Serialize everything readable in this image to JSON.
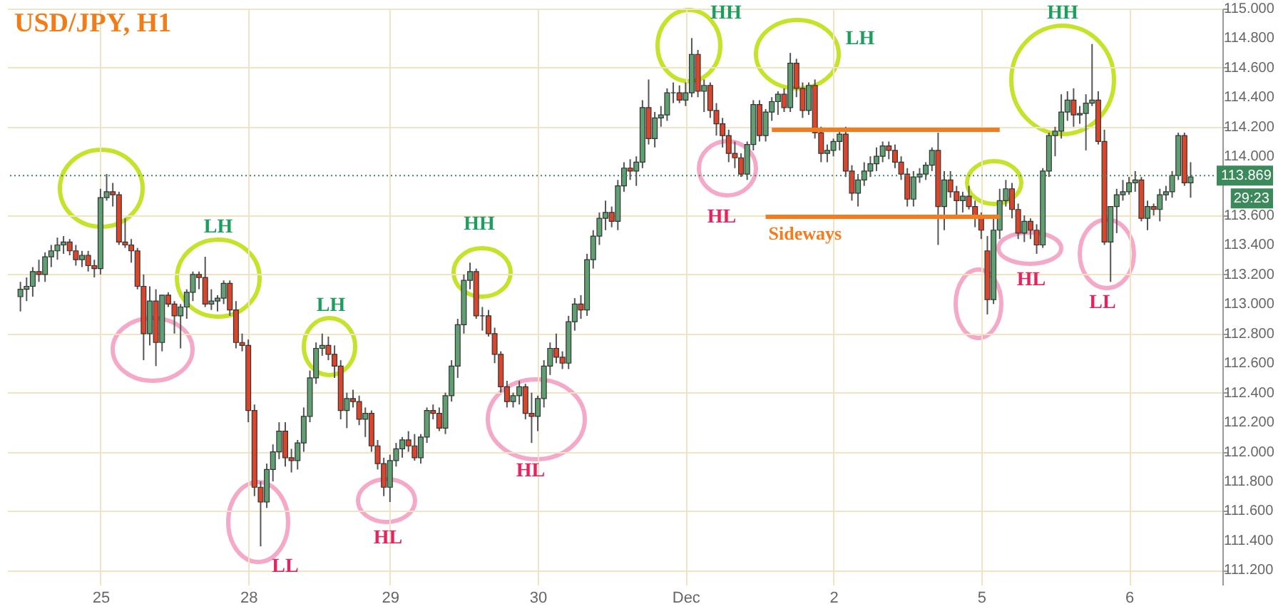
{
  "chart_data": {
    "type": "candlestick",
    "title": "USD/JPY, H1",
    "categories": [
      null,
      null,
      null,
      null,
      null,
      null,
      null,
      null,
      null,
      null,
      null,
      null,
      null,
      "25",
      null,
      null,
      null,
      null,
      null,
      null,
      null,
      null,
      null,
      null,
      null,
      null,
      null,
      null,
      null,
      null,
      null,
      null,
      null,
      null,
      null,
      null,
      null,
      "28",
      null,
      null,
      null,
      null,
      null,
      null,
      null,
      null,
      null,
      null,
      null,
      null,
      null,
      null,
      null,
      null,
      null,
      null,
      null,
      null,
      null,
      null,
      "29",
      null,
      null,
      null,
      null,
      null,
      null,
      null,
      null,
      null,
      null,
      null,
      null,
      null,
      null,
      null,
      null,
      null,
      null,
      null,
      null,
      null,
      null,
      null,
      "30",
      null,
      null,
      null,
      null,
      null,
      null,
      null,
      null,
      null,
      null,
      null,
      null,
      null,
      null,
      null,
      null,
      null,
      null,
      null,
      null,
      null,
      null,
      null,
      "Dec",
      null,
      null,
      null,
      null,
      null,
      null,
      null,
      null,
      null,
      null,
      null,
      null,
      null,
      null,
      null,
      null,
      null,
      null,
      null,
      null,
      null,
      null,
      null,
      "2",
      null,
      null,
      null,
      null,
      null,
      null,
      null,
      null,
      null,
      null,
      null,
      null,
      null,
      null,
      null,
      null,
      null,
      null,
      null,
      null,
      null,
      null,
      null,
      "5",
      null,
      null,
      null,
      null,
      null,
      null,
      null,
      null,
      null,
      null,
      null,
      null,
      null,
      null,
      null,
      null,
      null,
      null,
      null,
      null,
      null,
      null,
      null,
      "6",
      null,
      null,
      null,
      null,
      null,
      null,
      null,
      null,
      null,
      null
    ],
    "ohlc": [
      [
        113.05,
        113.15,
        112.95,
        113.1
      ],
      [
        113.1,
        113.18,
        113.02,
        113.12
      ],
      [
        113.12,
        113.25,
        113.05,
        113.22
      ],
      [
        113.22,
        113.3,
        113.15,
        113.2
      ],
      [
        113.2,
        113.35,
        113.15,
        113.32
      ],
      [
        113.32,
        113.4,
        113.25,
        113.36
      ],
      [
        113.36,
        113.45,
        113.3,
        113.4
      ],
      [
        113.4,
        113.46,
        113.34,
        113.42
      ],
      [
        113.42,
        113.44,
        113.33,
        113.36
      ],
      [
        113.36,
        113.4,
        113.26,
        113.3
      ],
      [
        113.3,
        113.36,
        113.25,
        113.33
      ],
      [
        113.33,
        113.36,
        113.22,
        113.26
      ],
      [
        113.26,
        113.3,
        113.18,
        113.24
      ],
      [
        113.24,
        113.78,
        113.2,
        113.72
      ],
      [
        113.72,
        113.88,
        113.7,
        113.76
      ],
      [
        113.76,
        113.82,
        113.66,
        113.74
      ],
      [
        113.74,
        113.76,
        113.4,
        113.42
      ],
      [
        113.42,
        113.58,
        113.38,
        113.4
      ],
      [
        113.4,
        113.44,
        113.28,
        113.36
      ],
      [
        113.36,
        113.38,
        113.1,
        113.12
      ],
      [
        113.12,
        113.2,
        112.62,
        112.8
      ],
      [
        112.8,
        113.12,
        112.72,
        113.02
      ],
      [
        113.02,
        113.1,
        112.58,
        112.74
      ],
      [
        112.74,
        113.06,
        112.68,
        113.06
      ],
      [
        113.06,
        113.08,
        112.98,
        113.0
      ],
      [
        113.0,
        113.02,
        112.8,
        112.92
      ],
      [
        112.92,
        113.0,
        112.7,
        112.98
      ],
      [
        112.98,
        113.1,
        112.9,
        113.08
      ],
      [
        113.08,
        113.22,
        113.02,
        113.2
      ],
      [
        113.2,
        113.22,
        113.1,
        113.18
      ],
      [
        113.18,
        113.32,
        112.98,
        113.0
      ],
      [
        113.0,
        113.1,
        112.96,
        113.02
      ],
      [
        113.02,
        113.06,
        112.95,
        113.04
      ],
      [
        113.04,
        113.16,
        113.0,
        113.14
      ],
      [
        113.14,
        113.16,
        112.92,
        112.96
      ],
      [
        112.96,
        113.02,
        112.7,
        112.74
      ],
      [
        112.74,
        112.8,
        112.68,
        112.72
      ],
      [
        112.72,
        112.76,
        112.2,
        112.28
      ],
      [
        112.28,
        112.32,
        111.7,
        111.76
      ],
      [
        111.76,
        111.8,
        111.36,
        111.66
      ],
      [
        111.66,
        111.92,
        111.62,
        111.88
      ],
      [
        111.88,
        112.05,
        111.8,
        112.0
      ],
      [
        112.0,
        112.2,
        111.95,
        112.14
      ],
      [
        112.14,
        112.2,
        111.9,
        111.96
      ],
      [
        111.96,
        112.02,
        111.86,
        111.94
      ],
      [
        111.94,
        112.08,
        111.88,
        112.06
      ],
      [
        112.06,
        112.3,
        112.0,
        112.24
      ],
      [
        112.24,
        112.55,
        112.2,
        112.5
      ],
      [
        112.5,
        112.74,
        112.46,
        112.7
      ],
      [
        112.7,
        112.8,
        112.65,
        112.72
      ],
      [
        112.72,
        112.78,
        112.62,
        112.66
      ],
      [
        112.66,
        112.72,
        112.5,
        112.58
      ],
      [
        112.58,
        112.62,
        112.22,
        112.28
      ],
      [
        112.28,
        112.4,
        112.16,
        112.36
      ],
      [
        112.36,
        112.42,
        112.3,
        112.34
      ],
      [
        112.34,
        112.38,
        112.18,
        112.22
      ],
      [
        112.22,
        112.3,
        112.1,
        112.26
      ],
      [
        112.26,
        112.28,
        112.0,
        112.04
      ],
      [
        112.04,
        112.08,
        111.88,
        111.92
      ],
      [
        111.92,
        111.96,
        111.7,
        111.76
      ],
      [
        111.76,
        111.98,
        111.66,
        111.94
      ],
      [
        111.94,
        112.06,
        111.9,
        112.02
      ],
      [
        112.02,
        112.1,
        111.96,
        112.08
      ],
      [
        112.08,
        112.14,
        112.0,
        112.04
      ],
      [
        112.04,
        112.12,
        111.94,
        111.96
      ],
      [
        111.96,
        112.12,
        111.92,
        112.1
      ],
      [
        112.1,
        112.3,
        112.06,
        112.28
      ],
      [
        112.28,
        112.32,
        112.22,
        112.26
      ],
      [
        112.26,
        112.3,
        112.14,
        112.16
      ],
      [
        112.16,
        112.4,
        112.12,
        112.38
      ],
      [
        112.38,
        112.62,
        112.34,
        112.58
      ],
      [
        112.58,
        112.9,
        112.5,
        112.86
      ],
      [
        112.86,
        113.2,
        112.8,
        113.16
      ],
      [
        113.16,
        113.28,
        113.1,
        113.22
      ],
      [
        113.22,
        113.24,
        112.9,
        112.92
      ],
      [
        112.92,
        112.98,
        112.82,
        112.92
      ],
      [
        112.92,
        112.96,
        112.78,
        112.8
      ],
      [
        112.8,
        112.84,
        112.6,
        112.66
      ],
      [
        112.66,
        112.68,
        112.4,
        112.44
      ],
      [
        112.44,
        112.48,
        112.3,
        112.34
      ],
      [
        112.34,
        112.4,
        112.3,
        112.38
      ],
      [
        112.38,
        112.48,
        112.32,
        112.44
      ],
      [
        112.44,
        112.46,
        112.22,
        112.26
      ],
      [
        112.26,
        112.4,
        112.06,
        112.24
      ],
      [
        112.24,
        112.38,
        112.14,
        112.36
      ],
      [
        112.36,
        112.62,
        112.3,
        112.58
      ],
      [
        112.58,
        112.74,
        112.52,
        112.7
      ],
      [
        112.7,
        112.8,
        112.6,
        112.64
      ],
      [
        112.64,
        112.68,
        112.56,
        112.6
      ],
      [
        112.6,
        112.92,
        112.56,
        112.88
      ],
      [
        112.88,
        113.04,
        112.82,
        113.0
      ],
      [
        113.0,
        113.06,
        112.9,
        112.96
      ],
      [
        112.96,
        113.34,
        112.92,
        113.3
      ],
      [
        113.3,
        113.5,
        113.24,
        113.46
      ],
      [
        113.46,
        113.62,
        113.4,
        113.58
      ],
      [
        113.58,
        113.7,
        113.5,
        113.62
      ],
      [
        113.62,
        113.66,
        113.52,
        113.56
      ],
      [
        113.56,
        113.84,
        113.5,
        113.8
      ],
      [
        113.8,
        113.96,
        113.76,
        113.92
      ],
      [
        113.92,
        113.98,
        113.84,
        113.9
      ],
      [
        113.9,
        114.0,
        113.8,
        113.96
      ],
      [
        113.96,
        114.38,
        113.92,
        114.33
      ],
      [
        114.33,
        114.52,
        114.08,
        114.12
      ],
      [
        114.12,
        114.3,
        114.06,
        114.26
      ],
      [
        114.26,
        114.34,
        114.2,
        114.28
      ],
      [
        114.28,
        114.46,
        114.24,
        114.43
      ],
      [
        114.43,
        114.5,
        114.36,
        114.43
      ],
      [
        114.43,
        114.48,
        114.36,
        114.38
      ],
      [
        114.38,
        114.5,
        114.34,
        114.43
      ],
      [
        114.43,
        114.8,
        114.4,
        114.69
      ],
      [
        114.69,
        114.72,
        114.4,
        114.44
      ],
      [
        114.44,
        114.52,
        114.3,
        114.48
      ],
      [
        114.48,
        114.5,
        114.26,
        114.31
      ],
      [
        114.31,
        114.36,
        114.14,
        114.22
      ],
      [
        114.22,
        114.26,
        114.06,
        114.14
      ],
      [
        114.14,
        114.18,
        113.96,
        114.02
      ],
      [
        114.02,
        114.1,
        113.92,
        113.99
      ],
      [
        113.99,
        114.02,
        113.86,
        113.88
      ],
      [
        113.88,
        114.1,
        113.84,
        114.08
      ],
      [
        114.08,
        114.38,
        114.04,
        114.35
      ],
      [
        114.35,
        114.38,
        114.1,
        114.14
      ],
      [
        114.14,
        114.32,
        114.1,
        114.3
      ],
      [
        114.3,
        114.4,
        114.24,
        114.37
      ],
      [
        114.37,
        114.44,
        114.28,
        114.42
      ],
      [
        114.42,
        114.46,
        114.3,
        114.33
      ],
      [
        114.33,
        114.7,
        114.3,
        114.63
      ],
      [
        114.63,
        114.66,
        114.4,
        114.46
      ],
      [
        114.46,
        114.5,
        114.26,
        114.31
      ],
      [
        114.31,
        114.5,
        114.28,
        114.48
      ],
      [
        114.48,
        114.52,
        114.12,
        114.16
      ],
      [
        114.16,
        114.2,
        113.96,
        114.02
      ],
      [
        114.02,
        114.08,
        113.96,
        114.04
      ],
      [
        114.04,
        114.12,
        114.0,
        114.1
      ],
      [
        114.1,
        114.18,
        114.04,
        114.15
      ],
      [
        114.15,
        114.2,
        113.86,
        113.9
      ],
      [
        113.9,
        113.94,
        113.7,
        113.75
      ],
      [
        113.75,
        113.88,
        113.66,
        113.84
      ],
      [
        113.84,
        113.96,
        113.8,
        113.9
      ],
      [
        113.9,
        114.0,
        113.86,
        113.95
      ],
      [
        113.95,
        114.06,
        113.9,
        114.0
      ],
      [
        114.0,
        114.1,
        113.96,
        114.07
      ],
      [
        114.07,
        114.1,
        113.98,
        114.04
      ],
      [
        114.04,
        114.08,
        113.92,
        113.96
      ],
      [
        113.96,
        114.0,
        113.84,
        113.88
      ],
      [
        113.88,
        113.92,
        113.66,
        113.71
      ],
      [
        113.71,
        113.9,
        113.66,
        113.86
      ],
      [
        113.86,
        113.92,
        113.82,
        113.88
      ],
      [
        113.88,
        113.96,
        113.84,
        113.94
      ],
      [
        113.94,
        114.06,
        113.9,
        114.04
      ],
      [
        114.04,
        114.16,
        113.4,
        113.66
      ],
      [
        113.66,
        113.9,
        113.5,
        113.84
      ],
      [
        113.84,
        113.9,
        113.72,
        113.76
      ],
      [
        113.76,
        113.8,
        113.6,
        113.7
      ],
      [
        113.7,
        113.76,
        113.62,
        113.73
      ],
      [
        113.73,
        113.8,
        113.64,
        113.66
      ],
      [
        113.66,
        113.7,
        113.52,
        113.58
      ],
      [
        113.58,
        113.62,
        113.44,
        113.5
      ],
      [
        113.36,
        113.46,
        112.93,
        113.03
      ],
      [
        113.03,
        113.58,
        113.0,
        113.5
      ],
      [
        113.5,
        113.78,
        113.44,
        113.7
      ],
      [
        113.7,
        113.84,
        113.66,
        113.78
      ],
      [
        113.78,
        113.82,
        113.58,
        113.64
      ],
      [
        113.64,
        113.68,
        113.44,
        113.48
      ],
      [
        113.48,
        113.6,
        113.42,
        113.56
      ],
      [
        113.56,
        113.58,
        113.44,
        113.5
      ],
      [
        113.5,
        113.54,
        113.34,
        113.4
      ],
      [
        113.4,
        113.92,
        113.38,
        113.9
      ],
      [
        113.9,
        114.16,
        113.86,
        114.14
      ],
      [
        114.14,
        114.2,
        114.0,
        114.17
      ],
      [
        114.17,
        114.42,
        114.12,
        114.3
      ],
      [
        114.3,
        114.44,
        114.24,
        114.38
      ],
      [
        114.38,
        114.46,
        114.2,
        114.28
      ],
      [
        114.28,
        114.34,
        114.22,
        114.29
      ],
      [
        114.29,
        114.42,
        114.04,
        114.36
      ],
      [
        114.36,
        114.76,
        114.34,
        114.38
      ],
      [
        114.38,
        114.44,
        114.08,
        114.1
      ],
      [
        114.1,
        114.18,
        113.4,
        113.42
      ],
      [
        113.42,
        113.66,
        113.15,
        113.66
      ],
      [
        113.66,
        113.78,
        113.48,
        113.74
      ],
      [
        113.74,
        113.84,
        113.7,
        113.76
      ],
      [
        113.76,
        113.86,
        113.74,
        113.82
      ],
      [
        113.82,
        113.9,
        113.76,
        113.84
      ],
      [
        113.84,
        113.86,
        113.56,
        113.58
      ],
      [
        113.58,
        113.7,
        113.5,
        113.66
      ],
      [
        113.66,
        113.68,
        113.6,
        113.64
      ],
      [
        113.64,
        113.78,
        113.56,
        113.74
      ],
      [
        113.74,
        113.8,
        113.7,
        113.76
      ],
      [
        113.76,
        113.9,
        113.72,
        113.87
      ],
      [
        113.87,
        114.16,
        113.84,
        114.14
      ],
      [
        114.14,
        114.16,
        113.8,
        113.82
      ],
      [
        113.82,
        113.96,
        113.72,
        113.86
      ]
    ],
    "series": [
      {
        "type": "line",
        "color": "#f27c1e",
        "values": [
          null,
          null,
          null,
          null,
          null,
          null,
          null,
          null,
          null,
          null,
          null,
          null,
          null,
          null,
          null,
          null,
          null,
          null,
          null,
          null,
          null,
          null,
          null,
          null,
          null,
          null,
          null,
          null,
          null,
          null,
          null,
          null,
          null,
          null,
          null,
          null,
          null,
          null,
          null,
          null,
          null,
          null,
          null,
          null,
          null,
          null,
          null,
          null,
          null,
          null,
          null,
          null,
          null,
          null,
          null,
          null,
          null,
          null,
          null,
          null,
          null,
          null,
          null,
          null,
          null,
          null,
          null,
          null,
          null,
          null,
          null,
          null,
          null,
          null,
          null,
          null,
          null,
          null,
          null,
          null,
          null,
          null,
          null,
          null,
          null,
          null,
          null,
          null,
          null,
          null,
          null,
          null,
          null,
          null,
          null,
          null,
          null,
          null,
          null,
          null,
          null,
          null,
          null,
          null,
          null,
          null,
          null,
          null,
          null,
          null,
          null,
          null,
          null,
          null,
          null,
          null,
          null,
          null,
          null,
          null,
          null,
          null,
          114.18,
          114.18,
          114.18,
          114.18,
          114.18,
          114.18,
          114.18,
          114.18,
          114.18,
          114.18,
          114.18,
          114.18,
          114.18,
          114.18,
          114.18,
          114.18,
          114.18,
          114.18,
          114.18,
          114.18,
          114.18,
          114.18,
          114.18,
          114.18,
          114.18,
          114.18,
          114.18,
          114.18,
          114.18,
          114.18,
          114.18,
          114.18,
          114.18,
          114.18,
          114.18,
          114.18,
          114.18,
          114.18,
          null,
          null,
          null,
          null,
          null,
          null,
          null,
          null,
          null,
          null,
          null,
          null,
          null,
          null,
          null,
          null,
          null,
          null,
          null,
          null,
          null,
          null,
          null,
          null,
          null,
          null,
          null,
          null,
          null,
          null,
          null
        ]
      },
      {
        "type": "line",
        "name": "Sideways",
        "color": "#f27c1e",
        "values": [
          null,
          null,
          null,
          null,
          null,
          null,
          null,
          null,
          null,
          null,
          null,
          null,
          null,
          null,
          null,
          null,
          null,
          null,
          null,
          null,
          null,
          null,
          null,
          null,
          null,
          null,
          null,
          null,
          null,
          null,
          null,
          null,
          null,
          null,
          null,
          null,
          null,
          null,
          null,
          null,
          null,
          null,
          null,
          null,
          null,
          null,
          null,
          null,
          null,
          null,
          null,
          null,
          null,
          null,
          null,
          null,
          null,
          null,
          null,
          null,
          null,
          null,
          null,
          null,
          null,
          null,
          null,
          null,
          null,
          null,
          null,
          null,
          null,
          null,
          null,
          null,
          null,
          null,
          null,
          null,
          null,
          null,
          null,
          null,
          null,
          null,
          null,
          null,
          null,
          null,
          null,
          null,
          null,
          null,
          null,
          null,
          null,
          null,
          null,
          null,
          null,
          null,
          null,
          null,
          null,
          null,
          null,
          null,
          null,
          null,
          null,
          null,
          null,
          null,
          null,
          null,
          null,
          null,
          null,
          null,
          null,
          113.59,
          113.59,
          113.59,
          113.59,
          113.59,
          113.59,
          113.59,
          113.59,
          113.59,
          113.59,
          113.59,
          113.59,
          113.59,
          113.59,
          113.59,
          113.59,
          113.59,
          113.59,
          113.59,
          113.59,
          113.59,
          113.59,
          113.59,
          113.59,
          113.59,
          113.59,
          113.59,
          113.59,
          113.59,
          113.59,
          113.59,
          113.59,
          113.59,
          113.59,
          113.59,
          113.59,
          113.59,
          113.59,
          113.59,
          null,
          null,
          null,
          null,
          null,
          null,
          null,
          null,
          null,
          null,
          null,
          null,
          null,
          null,
          null,
          null,
          null,
          null,
          null,
          null,
          null,
          null,
          null,
          null,
          null,
          null,
          null,
          null,
          null,
          null,
          null
        ]
      }
    ],
    "ylim": [
      111.1,
      115
    ],
    "yticks": [
      {
        "value": 111.2,
        "label": "111.200"
      },
      {
        "value": 111.4,
        "label": "111.400"
      },
      {
        "value": 111.6,
        "label": "111.600"
      },
      {
        "value": 111.8,
        "label": "111.800"
      },
      {
        "value": 112,
        "label": "112.000"
      },
      {
        "value": 112.2,
        "label": "112.200"
      },
      {
        "value": 112.4,
        "label": "112.400"
      },
      {
        "value": 112.6,
        "label": "112.600"
      },
      {
        "value": 112.8,
        "label": "112.800"
      },
      {
        "value": 113,
        "label": "113.000"
      },
      {
        "value": 113.2,
        "label": "113.200"
      },
      {
        "value": 113.4,
        "label": "113.400"
      },
      {
        "value": 113.6,
        "label": "113.600"
      },
      {
        "value": 114,
        "label": "114.000"
      },
      {
        "value": 114.2,
        "label": "114.200"
      },
      {
        "value": 114.4,
        "label": "114.400"
      },
      {
        "value": 114.6,
        "label": "114.600"
      },
      {
        "value": 114.8,
        "label": "114.800"
      },
      {
        "value": 115,
        "label": "115.000"
      }
    ],
    "ref_lines": [
      {
        "axis": "y",
        "value": 113.869,
        "label": "113.869",
        "color": "#3c8a5c",
        "line_style": "dotted"
      }
    ],
    "grid": true,
    "annotations": [
      "29:23",
      "LH",
      "LL",
      "LH",
      "HL",
      "HH",
      "HL",
      "HL",
      "HH",
      "LH",
      "HL",
      "HH",
      "LL"
    ]
  }
}
